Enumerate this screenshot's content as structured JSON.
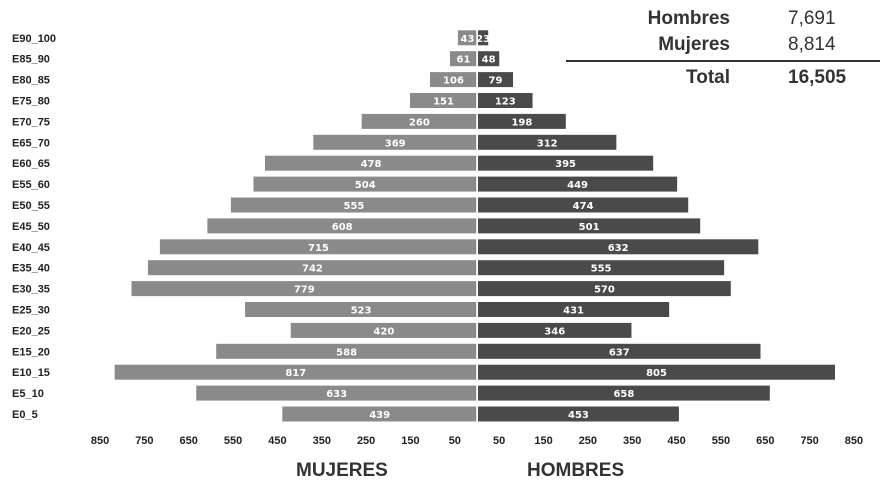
{
  "summary": {
    "rows": [
      {
        "label": "Hombres",
        "value": "7,691"
      },
      {
        "label": "Mujeres",
        "value": "8,814"
      }
    ],
    "total": {
      "label": "Total",
      "value": "16,505"
    }
  },
  "chart_data": {
    "type": "bar",
    "orientation": "horizontal",
    "categories": [
      "E0_5",
      "E5_10",
      "E10_15",
      "E15_20",
      "E20_25",
      "E25_30",
      "E30_35",
      "E35_40",
      "E40_45",
      "E45_50",
      "E50_55",
      "E55_60",
      "E60_65",
      "E65_70",
      "E70_75",
      "E75_80",
      "E80_85",
      "E85_90",
      "E90_100"
    ],
    "series": [
      {
        "name": "MUJERES",
        "values": [
          439,
          633,
          817,
          588,
          420,
          523,
          779,
          742,
          715,
          608,
          555,
          504,
          478,
          369,
          260,
          151,
          106,
          61,
          43
        ],
        "color": "#8a8a8a",
        "side": "left"
      },
      {
        "name": "HOMBRES",
        "values": [
          453,
          658,
          805,
          637,
          346,
          431,
          570,
          555,
          632,
          501,
          474,
          449,
          395,
          312,
          198,
          123,
          79,
          48,
          23
        ],
        "color": "#4a4a4a",
        "side": "right"
      }
    ],
    "bar_labels": {
      "MUJERES": [
        "439",
        "633",
        "817",
        "588",
        "420",
        "523",
        "779",
        "742",
        "715",
        "608",
        "555",
        "504",
        "478",
        "369",
        "260",
        "151",
        "106",
        "61",
        "43"
      ],
      "HOMBRES": [
        "453",
        "658",
        "805",
        "637",
        "346",
        "431",
        "570",
        "555",
        "632",
        "501",
        "474",
        "449",
        "395",
        "312",
        "198",
        "123",
        "79",
        "48",
        "23"
      ]
    },
    "x_ticks": [
      "850",
      "750",
      "650",
      "550",
      "450",
      "350",
      "250",
      "150",
      "50",
      "50",
      "150",
      "250",
      "350",
      "450",
      "550",
      "650",
      "750",
      "850"
    ],
    "xlim": [
      -850,
      850
    ],
    "xlabel_left": "MUJERES",
    "xlabel_right": "HOMBRES",
    "grid": false
  }
}
